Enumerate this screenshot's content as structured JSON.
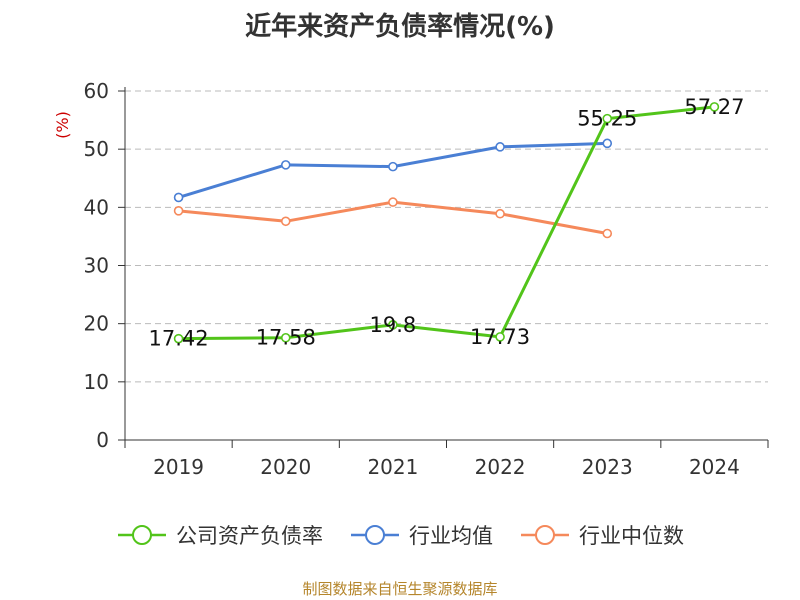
{
  "chart_data": {
    "type": "line",
    "title": "近年来资产负债率情况(%)",
    "ylabel": "(%)",
    "ylabel_color": "#cc0000",
    "categories": [
      "2019",
      "2020",
      "2021",
      "2022",
      "2023",
      "2024"
    ],
    "ylim": [
      0,
      60
    ],
    "yticks": [
      0,
      10,
      20,
      30,
      40,
      50,
      60
    ],
    "grid": true,
    "legend_position": "bottom",
    "series": [
      {
        "name": "公司资产负债率",
        "color": "#52c41a",
        "values": [
          17.42,
          17.58,
          19.8,
          17.73,
          55.25,
          57.27
        ],
        "labels": [
          "17.42",
          "17.58",
          "19.8",
          "17.73",
          "55.25",
          "57.27"
        ]
      },
      {
        "name": "行业均值",
        "color": "#4a7fd4",
        "values": [
          41.7,
          47.3,
          47.0,
          50.4,
          51.0,
          null
        ]
      },
      {
        "name": "行业中位数",
        "color": "#f5895b",
        "values": [
          39.4,
          37.6,
          40.9,
          38.9,
          35.5,
          null
        ]
      }
    ]
  },
  "source": "制图数据来自恒生聚源数据库"
}
